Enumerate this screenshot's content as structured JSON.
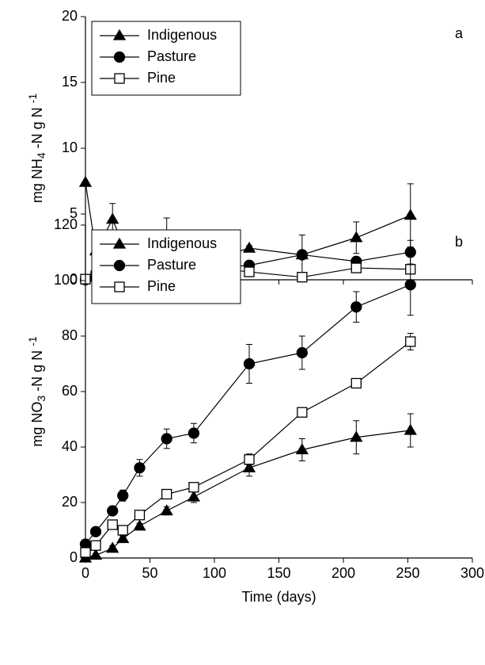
{
  "chart_data": [
    {
      "type": "line",
      "panel_label": "a",
      "ylabel": [
        "mg NH",
        "4",
        " -N g N ",
        "-1"
      ],
      "x": [
        0,
        8,
        21,
        29,
        42,
        63,
        84,
        127,
        168,
        210,
        252
      ],
      "xlim": [
        0,
        300
      ],
      "xticks": [
        0,
        50,
        100,
        150,
        200,
        250,
        300
      ],
      "show_xtick_labels": false,
      "ylim": [
        0,
        20
      ],
      "yticks": [
        0,
        5,
        10,
        15,
        20
      ],
      "series": [
        {
          "name": "Indigenous",
          "color": "#000000",
          "marker": "triangle",
          "values": [
            7.4,
            2.2,
            4.6,
            2.7,
            1.5,
            2.9,
            1.2,
            2.4,
            1.9,
            3.2,
            4.9
          ],
          "errors": [
            0,
            0.4,
            1.2,
            1.0,
            1.1,
            1.8,
            0.6,
            0.2,
            1.5,
            1.2,
            2.4
          ]
        },
        {
          "name": "Pasture",
          "color": "#000000",
          "marker": "circle",
          "values": [
            0,
            0.1,
            0.1,
            0.2,
            0.3,
            0.2,
            0.8,
            1.1,
            1.9,
            1.4,
            2.1
          ],
          "errors": [
            0,
            0.1,
            0.1,
            0.1,
            0.1,
            0.1,
            0.2,
            0.2,
            0.3,
            0.3,
            0.9
          ]
        },
        {
          "name": "Pine",
          "color": "#ffffff",
          "marker": "square",
          "values": [
            0.05,
            0.3,
            0.4,
            0.2,
            0.2,
            0.3,
            1.1,
            0.6,
            0.2,
            0.9,
            0.8
          ],
          "errors": [
            0,
            0.1,
            0.1,
            0.1,
            0.1,
            0.1,
            0.2,
            0.1,
            0.1,
            0.2,
            0.3
          ]
        }
      ]
    },
    {
      "type": "line",
      "panel_label": "b",
      "ylabel": [
        "mg NO",
        "3",
        " -N g N ",
        "-1"
      ],
      "xlabel": "Time (days)",
      "x": [
        0,
        8,
        21,
        29,
        42,
        63,
        84,
        127,
        168,
        210,
        252
      ],
      "xlim": [
        0,
        300
      ],
      "xticks": [
        0,
        50,
        100,
        150,
        200,
        250,
        300
      ],
      "show_xtick_labels": true,
      "ylim": [
        0,
        120
      ],
      "yticks": [
        0,
        20,
        40,
        60,
        80,
        100,
        120
      ],
      "series": [
        {
          "name": "Indigenous",
          "color": "#000000",
          "marker": "triangle",
          "values": [
            0,
            1,
            3.5,
            7,
            11.5,
            17,
            22,
            32.5,
            39,
            43.5,
            46
          ],
          "errors": [
            0,
            0.5,
            1,
            1,
            1,
            1.5,
            2,
            3,
            4,
            6,
            6
          ]
        },
        {
          "name": "Pasture",
          "color": "#000000",
          "marker": "circle",
          "values": [
            5,
            9.5,
            17,
            22.5,
            32.5,
            43,
            45,
            70,
            74,
            90.5,
            98.5
          ],
          "errors": [
            1,
            1,
            1.5,
            2,
            3,
            3.5,
            3.5,
            7,
            6,
            5.5,
            11
          ]
        },
        {
          "name": "Pine",
          "color": "#ffffff",
          "marker": "square",
          "values": [
            2,
            4.5,
            12,
            10,
            15.5,
            23,
            25.5,
            35.5,
            52.5,
            63,
            78
          ],
          "errors": [
            0.5,
            1,
            1,
            1,
            1,
            1.5,
            1.5,
            2,
            1.5,
            1.5,
            3
          ]
        }
      ]
    }
  ]
}
